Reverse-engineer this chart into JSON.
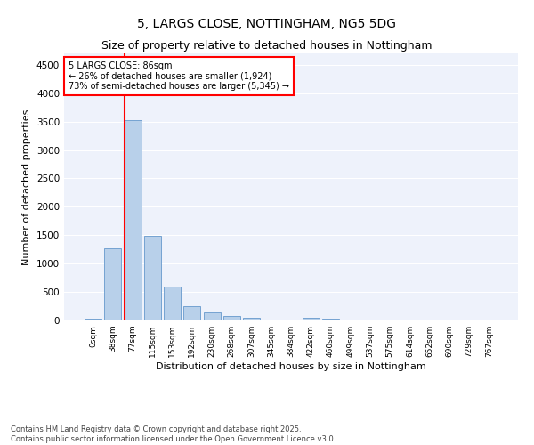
{
  "title": "5, LARGS CLOSE, NOTTINGHAM, NG5 5DG",
  "subtitle": "Size of property relative to detached houses in Nottingham",
  "xlabel": "Distribution of detached houses by size in Nottingham",
  "ylabel": "Number of detached properties",
  "bar_labels": [
    "0sqm",
    "38sqm",
    "77sqm",
    "115sqm",
    "153sqm",
    "192sqm",
    "230sqm",
    "268sqm",
    "307sqm",
    "345sqm",
    "384sqm",
    "422sqm",
    "460sqm",
    "499sqm",
    "537sqm",
    "575sqm",
    "614sqm",
    "652sqm",
    "690sqm",
    "729sqm",
    "767sqm"
  ],
  "bar_values": [
    30,
    1270,
    3530,
    1490,
    600,
    250,
    135,
    80,
    50,
    20,
    10,
    40,
    30,
    0,
    0,
    0,
    0,
    0,
    0,
    0,
    0
  ],
  "bar_color": "#b8d0ea",
  "bar_edge_color": "#6699cc",
  "vline_color": "red",
  "annotation_text": "5 LARGS CLOSE: 86sqm\n← 26% of detached houses are smaller (1,924)\n73% of semi-detached houses are larger (5,345) →",
  "annotation_box_edgecolor": "red",
  "annotation_text_color": "black",
  "ylim": [
    0,
    4700
  ],
  "yticks": [
    0,
    500,
    1000,
    1500,
    2000,
    2500,
    3000,
    3500,
    4000,
    4500
  ],
  "bg_color": "#eef2fb",
  "grid_color": "white",
  "footer": "Contains HM Land Registry data © Crown copyright and database right 2025.\nContains public sector information licensed under the Open Government Licence v3.0.",
  "title_fontsize": 10,
  "subtitle_fontsize": 9,
  "xlabel_fontsize": 8,
  "ylabel_fontsize": 8,
  "footer_fontsize": 6
}
